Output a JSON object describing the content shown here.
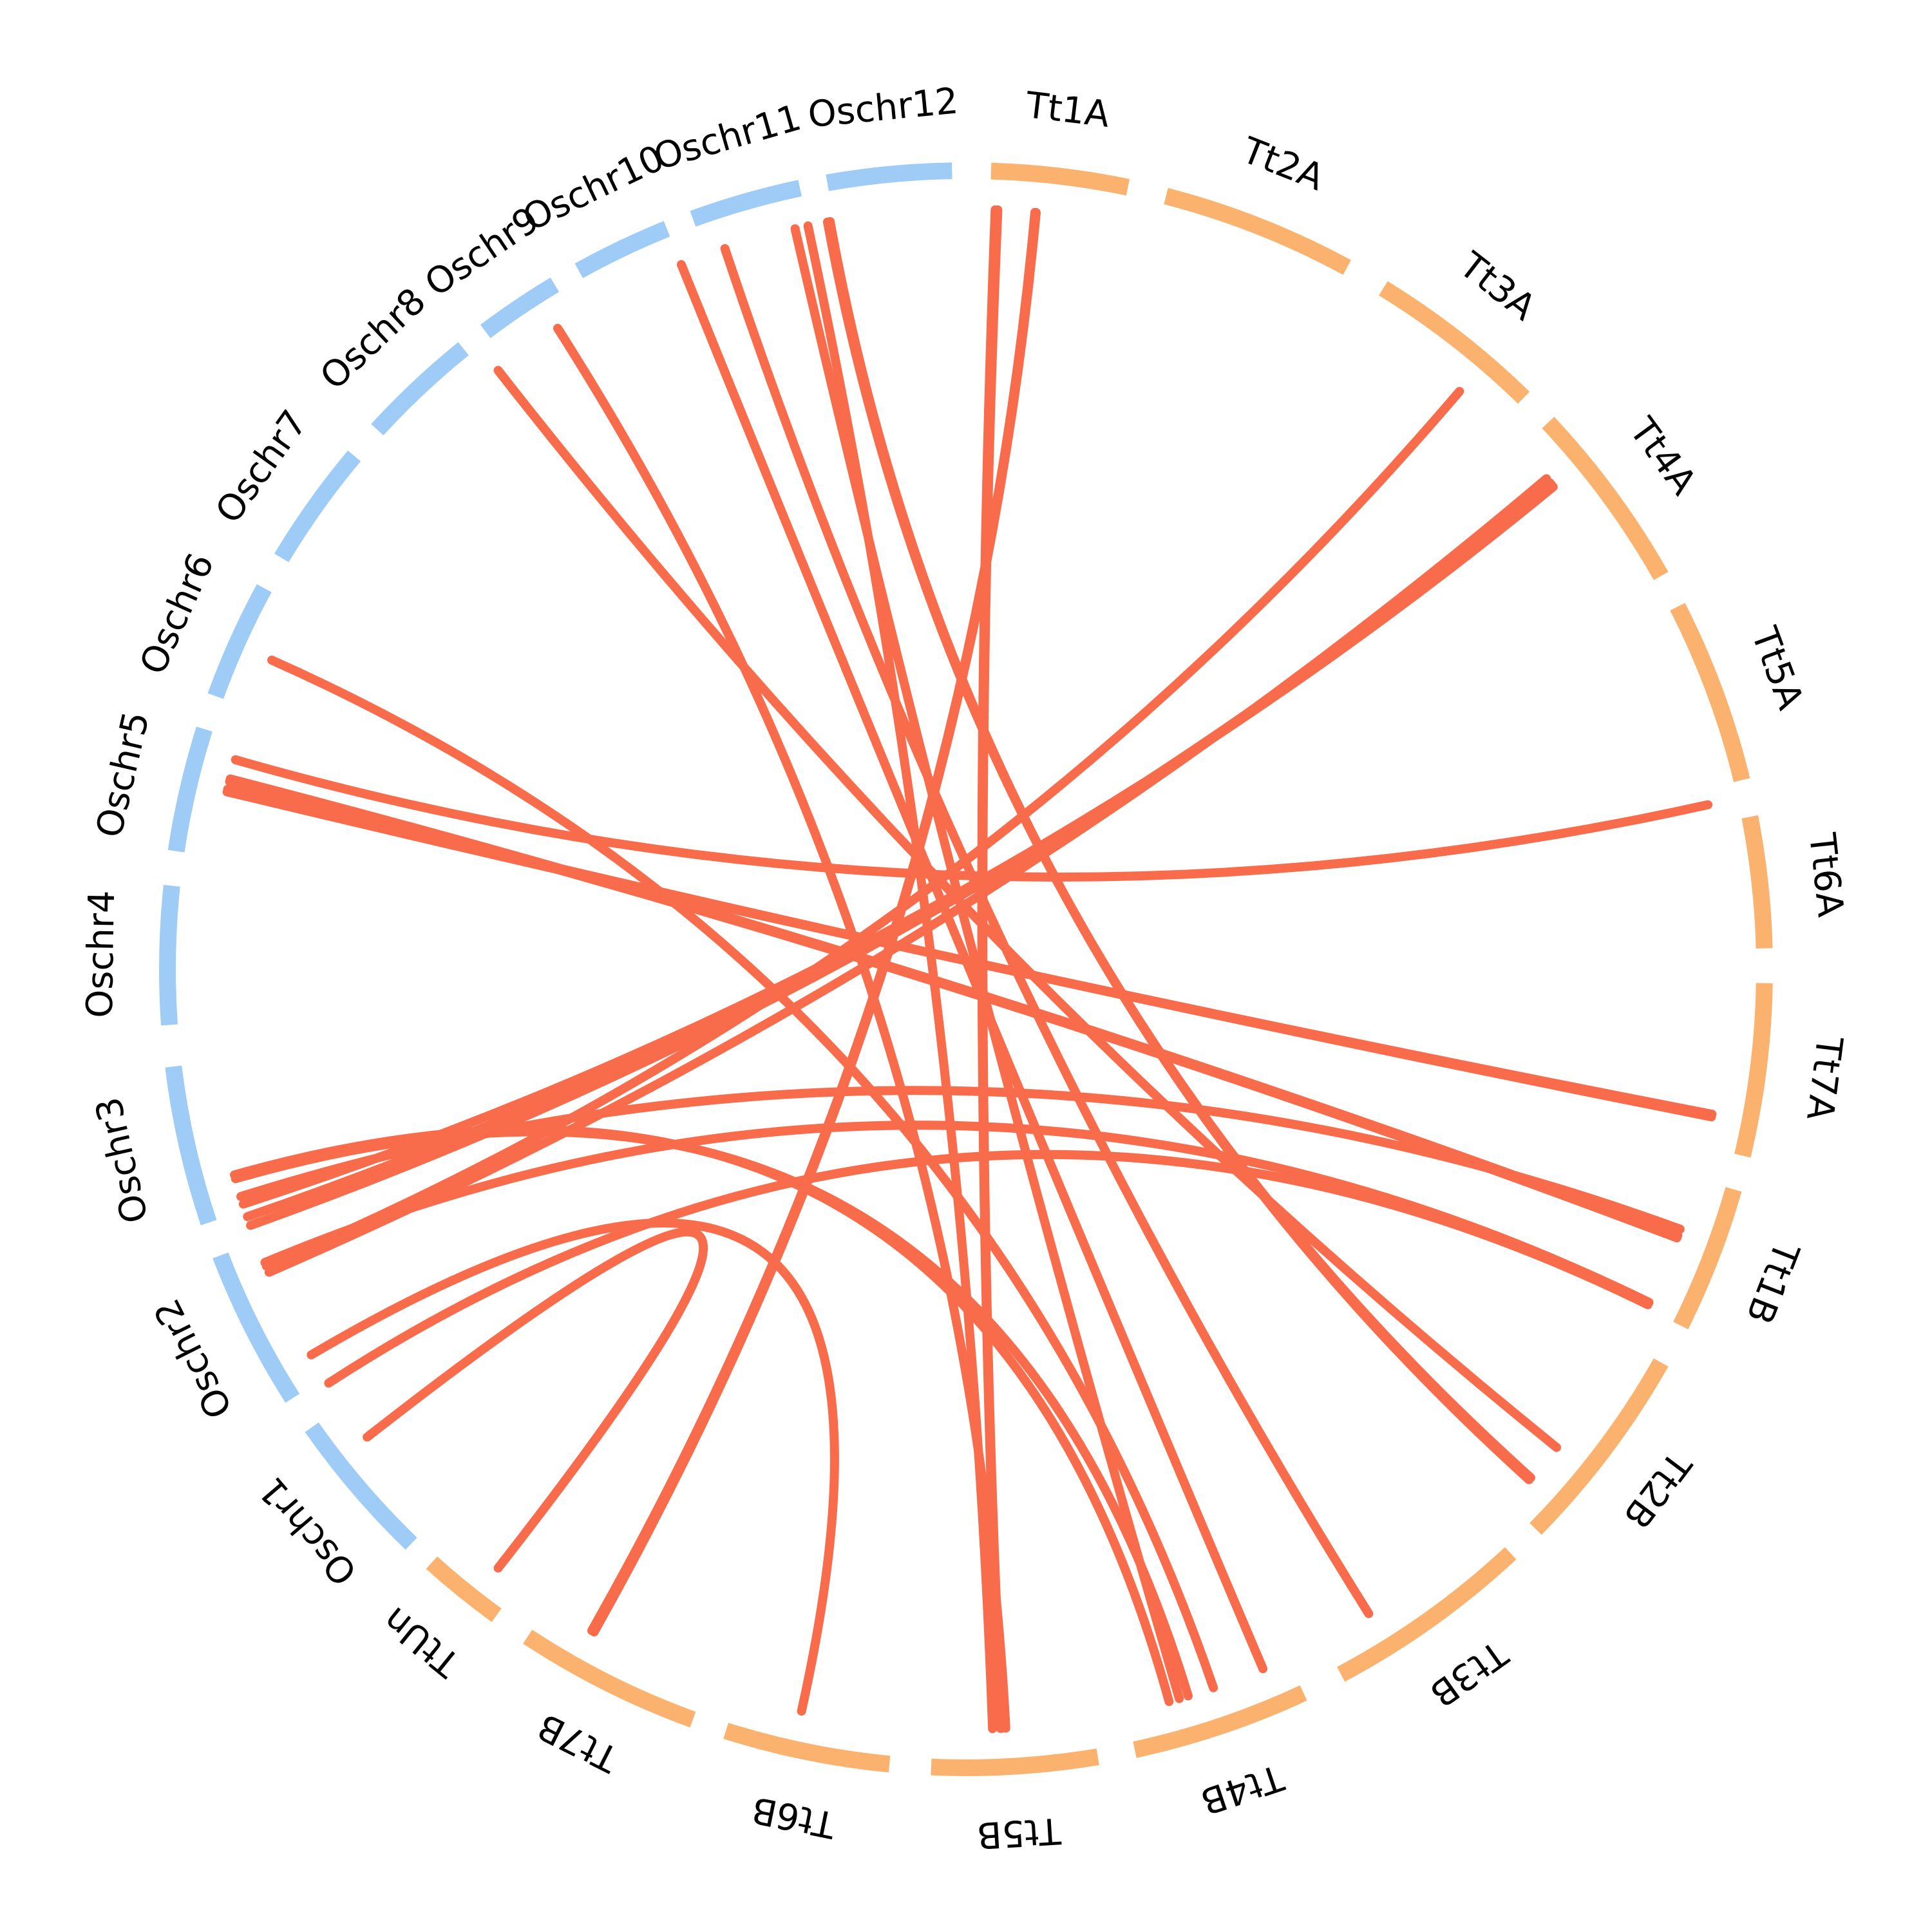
{
  "diagram": {
    "type": "circos-synteny",
    "colors": {
      "rice_segment": "#9FCBF7",
      "wheat_segment": "#FBB26E",
      "link": "#F86B4B",
      "label": "#000000"
    },
    "segments": [
      {
        "id": "Tt1A",
        "label": "Tt1A",
        "group": "wheat",
        "start_deg": 1.8,
        "end_deg": 11.7
      },
      {
        "id": "Tt2A",
        "label": "Tt2A",
        "group": "wheat",
        "start_deg": 14.5,
        "end_deg": 28.5
      },
      {
        "id": "Tt3A",
        "label": "Tt3A",
        "group": "wheat",
        "start_deg": 31.5,
        "end_deg": 44.3
      },
      {
        "id": "Tt4A",
        "label": "Tt4A",
        "group": "wheat",
        "start_deg": 46.8,
        "end_deg": 60.5
      },
      {
        "id": "Tt5A",
        "label": "Tt5A",
        "group": "wheat",
        "start_deg": 63.0,
        "end_deg": 76.3
      },
      {
        "id": "Tt6A",
        "label": "Tt6A",
        "group": "wheat",
        "start_deg": 79.0,
        "end_deg": 88.5
      },
      {
        "id": "Tt7A",
        "label": "Tt7A",
        "group": "wheat",
        "start_deg": 91.0,
        "end_deg": 103.5
      },
      {
        "id": "Tt1B",
        "label": "Tt1B",
        "group": "wheat",
        "start_deg": 106.0,
        "end_deg": 116.5
      },
      {
        "id": "Tt2B",
        "label": "Tt2B",
        "group": "wheat",
        "start_deg": 119.5,
        "end_deg": 134.5
      },
      {
        "id": "Tt3B",
        "label": "Tt3B",
        "group": "wheat",
        "start_deg": 137.0,
        "end_deg": 152.0
      },
      {
        "id": "Tt4B",
        "label": "Tt4B",
        "group": "wheat",
        "start_deg": 155.0,
        "end_deg": 167.8
      },
      {
        "id": "Tt5B",
        "label": "Tt5B",
        "group": "wheat",
        "start_deg": 170.5,
        "end_deg": 182.5
      },
      {
        "id": "Tt6B",
        "label": "Tt6B",
        "group": "wheat",
        "start_deg": 185.5,
        "end_deg": 197.5
      },
      {
        "id": "Tt7B",
        "label": "Tt7B",
        "group": "wheat",
        "start_deg": 200.0,
        "end_deg": 213.3
      },
      {
        "id": "TtUn",
        "label": "TtUn",
        "group": "wheat",
        "start_deg": 216.0,
        "end_deg": 222.0
      },
      {
        "id": "Oschr1",
        "label": "Oschr1",
        "group": "rice",
        "start_deg": 224.0,
        "end_deg": 235.0
      },
      {
        "id": "Oschr2",
        "label": "Oschr2",
        "group": "rice",
        "start_deg": 237.5,
        "end_deg": 249.0
      },
      {
        "id": "Oschr3",
        "label": "Oschr3",
        "group": "rice",
        "start_deg": 251.5,
        "end_deg": 263.0
      },
      {
        "id": "Oschr4",
        "label": "Oschr4",
        "group": "rice",
        "start_deg": 266.0,
        "end_deg": 276.0
      },
      {
        "id": "Oschr5",
        "label": "Oschr5",
        "group": "rice",
        "start_deg": 278.5,
        "end_deg": 287.5
      },
      {
        "id": "Oschr6",
        "label": "Oschr6",
        "group": "rice",
        "start_deg": 290.0,
        "end_deg": 298.5
      },
      {
        "id": "Oschr7",
        "label": "Oschr7",
        "group": "rice",
        "start_deg": 301.0,
        "end_deg": 310.0
      },
      {
        "id": "Oschr8",
        "label": "Oschr8",
        "group": "rice",
        "start_deg": 312.5,
        "end_deg": 321.0
      },
      {
        "id": "Oschr9",
        "label": "Oschr9",
        "group": "rice",
        "start_deg": 323.0,
        "end_deg": 329.0
      },
      {
        "id": "Oschr10",
        "label": "Oschr10",
        "group": "rice",
        "start_deg": 331.0,
        "end_deg": 338.0
      },
      {
        "id": "Oschr11",
        "label": "Oschr11",
        "group": "rice",
        "start_deg": 340.0,
        "end_deg": 348.0
      },
      {
        "id": "Oschr12",
        "label": "Oschr12",
        "group": "rice",
        "start_deg": 350.0,
        "end_deg": 359.0
      }
    ],
    "links": [
      {
        "from": "Tt1A",
        "from_deg": 2.2,
        "to": "Tt5B",
        "to_deg": 177.4
      },
      {
        "from": "Tt1A",
        "from_deg": 2.4,
        "to": "Tt5B",
        "to_deg": 177.3
      },
      {
        "from": "Tt1A",
        "from_deg": 5.2,
        "to": "Tt7B",
        "to_deg": 209.5
      },
      {
        "from": "Tt1A",
        "from_deg": 5.3,
        "to": "Tt7B",
        "to_deg": 209.3
      },
      {
        "from": "Tt3A",
        "from_deg": 40.5,
        "to": "Oschr2",
        "to_deg": 247.0
      },
      {
        "from": "Tt4A",
        "from_deg": 50.2,
        "to": "Oschr3",
        "to_deg": 250.3
      },
      {
        "from": "Tt4A",
        "from_deg": 50.4,
        "to": "Oschr3",
        "to_deg": 251.0
      },
      {
        "from": "Tt4A",
        "from_deg": 50.6,
        "to": "Oschr3",
        "to_deg": 252.0
      },
      {
        "from": "Tt4A",
        "from_deg": 49.8,
        "to": "Oschr2",
        "to_deg": 246.5
      },
      {
        "from": "Tt6A",
        "from_deg": 77.5,
        "to": "Oschr5",
        "to_deg": 286.0
      },
      {
        "from": "Tt7A",
        "from_deg": 101.0,
        "to": "Oschr5",
        "to_deg": 283.5
      },
      {
        "from": "Tt7A",
        "from_deg": 101.2,
        "to": "Oschr5",
        "to_deg": 283.7
      },
      {
        "from": "Tt1B",
        "from_deg": 110.5,
        "to": "Oschr5",
        "to_deg": 284.5
      },
      {
        "from": "Tt1B",
        "from_deg": 110.7,
        "to": "Oschr5",
        "to_deg": 284.3
      },
      {
        "from": "Tt1B",
        "from_deg": 110.0,
        "to": "Oschr3",
        "to_deg": 252.6
      },
      {
        "from": "Tt1B",
        "from_deg": 116.0,
        "to": "Oschr2",
        "to_deg": 247.3
      },
      {
        "from": "Tt1B",
        "from_deg": 116.2,
        "to": "Oschr1",
        "to_deg": 237.0
      },
      {
        "from": "Tt2B",
        "from_deg": 129.0,
        "to": "Oschr8",
        "to_deg": 322.0
      },
      {
        "from": "Tt2B",
        "from_deg": 132.0,
        "to": "Oschr12",
        "to_deg": 349.5
      },
      {
        "from": "Tt2B",
        "from_deg": 132.2,
        "to": "Oschr12",
        "to_deg": 349.7
      },
      {
        "from": "Tt3B",
        "from_deg": 148.0,
        "to": "Oschr11",
        "to_deg": 341.5
      },
      {
        "from": "Tt4B",
        "from_deg": 157.0,
        "to": "Oschr11",
        "to_deg": 338.0
      },
      {
        "from": "Tt4B",
        "from_deg": 161.0,
        "to": "Oschr6",
        "to_deg": 294.0
      },
      {
        "from": "Tt4B",
        "from_deg": 163.0,
        "to": "Oschr3",
        "to_deg": 254.0
      },
      {
        "from": "Tt4B",
        "from_deg": 164.5,
        "to": "Oschr3",
        "to_deg": 254.3
      },
      {
        "from": "Tt5B",
        "from_deg": 177.0,
        "to": "Oschr9",
        "to_deg": 327.5
      },
      {
        "from": "Tt6B",
        "from_deg": 192.5,
        "to": "Oschr2",
        "to_deg": 239.5
      },
      {
        "from": "TtUn",
        "from_deg": 218.0,
        "to": "Oschr1",
        "to_deg": 232.0
      },
      {
        "from": "Tt4B",
        "from_deg": 163.7,
        "to": "Oschr12",
        "to_deg": 347.0
      },
      {
        "from": "Tt5B",
        "from_deg": 178.0,
        "to": "Oschr12",
        "to_deg": 348.0
      }
    ]
  }
}
